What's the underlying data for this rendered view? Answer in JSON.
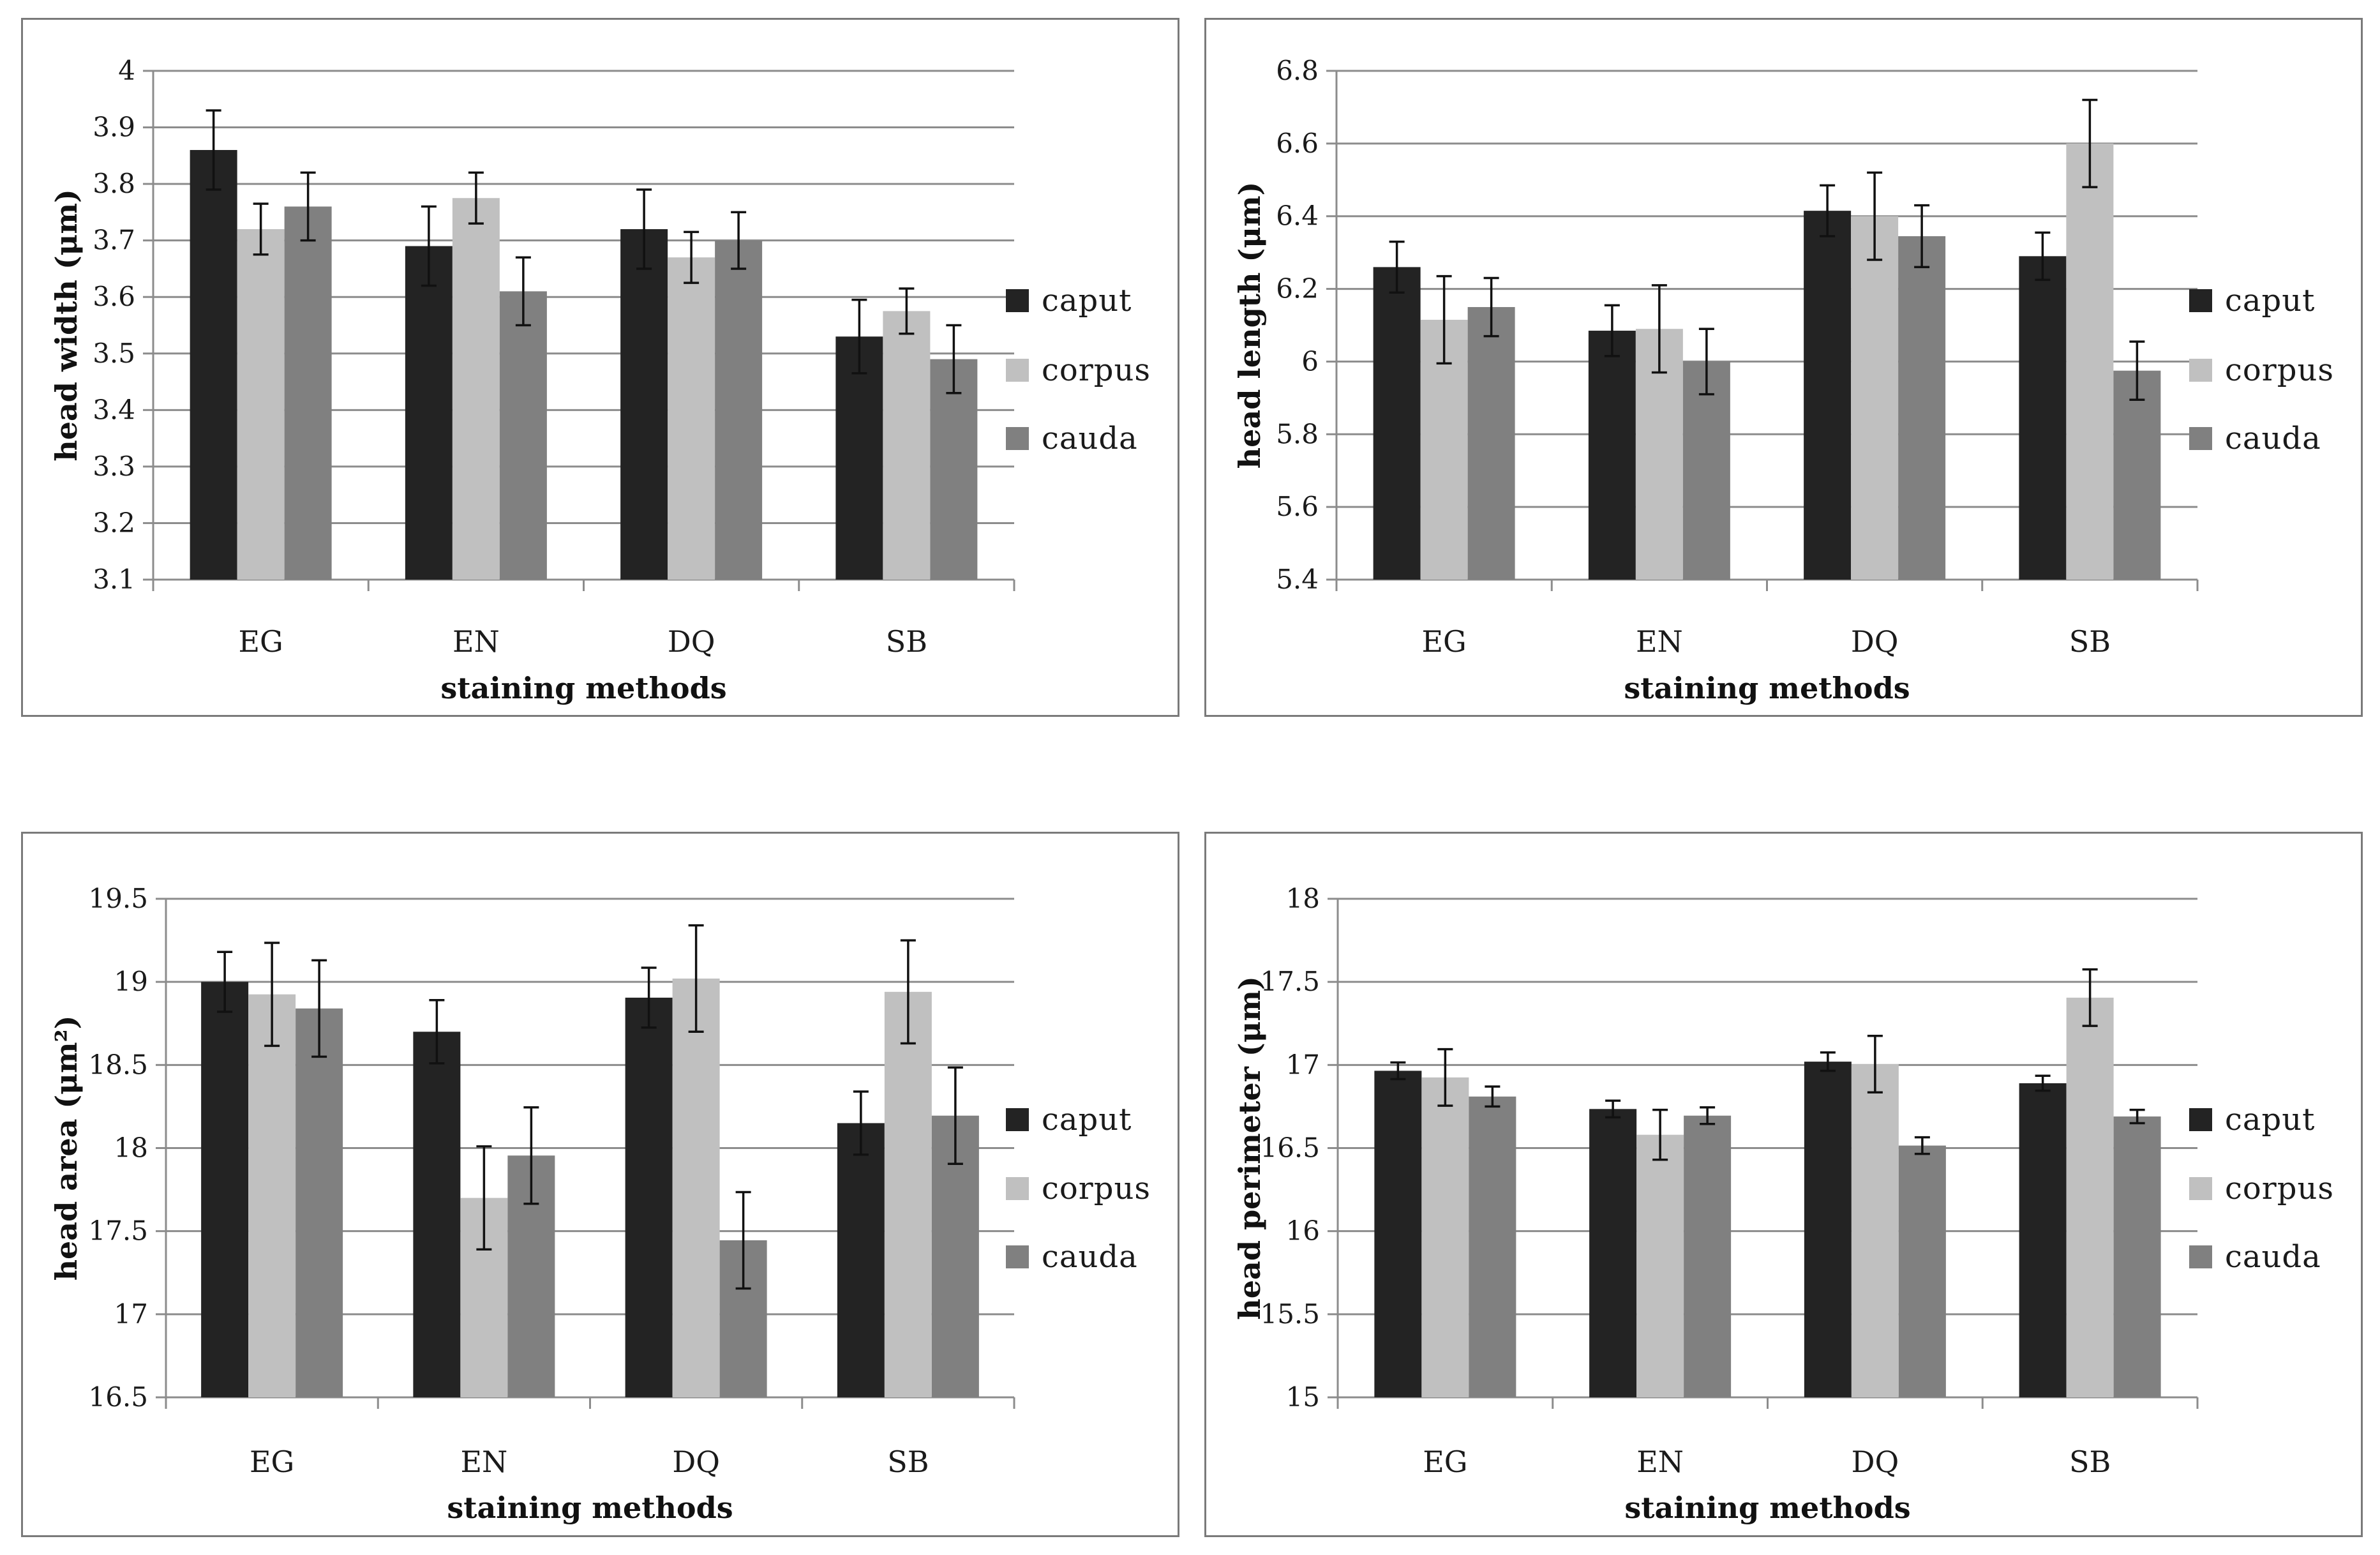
{
  "chart_data": [
    {
      "type": "bar",
      "categories": [
        "EG",
        "EN",
        "DQ",
        "SB"
      ],
      "xlabel": "staining methods",
      "ylabel": "head width (μm)",
      "ylim": [
        3.1,
        4.0
      ],
      "yticks": [
        "3.1",
        "3.2",
        "3.3",
        "3.4",
        "3.5",
        "3.6",
        "3.7",
        "3.8",
        "3.9",
        "4"
      ],
      "grid": true,
      "legend": "right",
      "series": [
        {
          "name": "caput",
          "color": "#232323",
          "values": [
            3.86,
            3.69,
            3.72,
            3.53
          ],
          "errors": [
            0.07,
            0.07,
            0.07,
            0.065
          ]
        },
        {
          "name": "corpus",
          "color": "#c0c0c0",
          "values": [
            3.72,
            3.775,
            3.67,
            3.575
          ],
          "errors": [
            0.045,
            0.045,
            0.045,
            0.04
          ]
        },
        {
          "name": "cauda",
          "color": "#808080",
          "values": [
            3.76,
            3.61,
            3.7,
            3.49
          ],
          "errors": [
            0.06,
            0.06,
            0.05,
            0.06
          ]
        }
      ]
    },
    {
      "type": "bar",
      "categories": [
        "EG",
        "EN",
        "DQ",
        "SB"
      ],
      "xlabel": "staining methods",
      "ylabel": "head length (μm)",
      "ylim": [
        5.4,
        6.8
      ],
      "yticks": [
        "5.4",
        "5.6",
        "5.8",
        "6",
        "6.2",
        "6.4",
        "6.6",
        "6.8"
      ],
      "grid": true,
      "legend": "right",
      "series": [
        {
          "name": "caput",
          "color": "#232323",
          "values": [
            6.26,
            6.085,
            6.415,
            6.29
          ],
          "errors": [
            0.07,
            0.07,
            0.07,
            0.065
          ]
        },
        {
          "name": "corpus",
          "color": "#c0c0c0",
          "values": [
            6.115,
            6.09,
            6.4,
            6.6
          ],
          "errors": [
            0.12,
            0.12,
            0.12,
            0.12
          ]
        },
        {
          "name": "cauda",
          "color": "#808080",
          "values": [
            6.15,
            6.0,
            6.345,
            5.975
          ],
          "errors": [
            0.08,
            0.09,
            0.085,
            0.08
          ]
        }
      ]
    },
    {
      "type": "bar",
      "categories": [
        "EG",
        "EN",
        "DQ",
        "SB"
      ],
      "xlabel": "staining methods",
      "ylabel": "head area (μm²)",
      "ylim": [
        16.5,
        19.5
      ],
      "yticks": [
        "16.5",
        "17",
        "17.5",
        "18",
        "18.5",
        "19",
        "19.5"
      ],
      "grid": true,
      "legend": "right",
      "series": [
        {
          "name": "caput",
          "color": "#232323",
          "values": [
            19.0,
            18.7,
            18.905,
            18.15
          ],
          "errors": [
            0.18,
            0.19,
            0.18,
            0.19
          ]
        },
        {
          "name": "corpus",
          "color": "#c0c0c0",
          "values": [
            18.925,
            17.7,
            19.02,
            18.94
          ],
          "errors": [
            0.31,
            0.31,
            0.32,
            0.31
          ]
        },
        {
          "name": "cauda",
          "color": "#808080",
          "values": [
            18.84,
            17.955,
            17.445,
            18.195
          ],
          "errors": [
            0.29,
            0.29,
            0.29,
            0.29
          ]
        }
      ]
    },
    {
      "type": "bar",
      "categories": [
        "EG",
        "EN",
        "DQ",
        "SB"
      ],
      "xlabel": "staining methods",
      "ylabel": "head perimeter (μm)",
      "ylim": [
        15,
        18
      ],
      "yticks": [
        "15",
        "15.5",
        "16",
        "16.5",
        "17",
        "17.5",
        "18"
      ],
      "grid": true,
      "legend": "right",
      "series": [
        {
          "name": "caput",
          "color": "#232323",
          "values": [
            16.965,
            16.735,
            17.02,
            16.89
          ],
          "errors": [
            0.05,
            0.05,
            0.055,
            0.045
          ]
        },
        {
          "name": "corpus",
          "color": "#c0c0c0",
          "values": [
            16.925,
            16.58,
            17.005,
            17.405
          ],
          "errors": [
            0.17,
            0.15,
            0.17,
            0.17
          ]
        },
        {
          "name": "cauda",
          "color": "#808080",
          "values": [
            16.81,
            16.695,
            16.515,
            16.69
          ],
          "errors": [
            0.06,
            0.05,
            0.05,
            0.04
          ]
        }
      ]
    }
  ]
}
